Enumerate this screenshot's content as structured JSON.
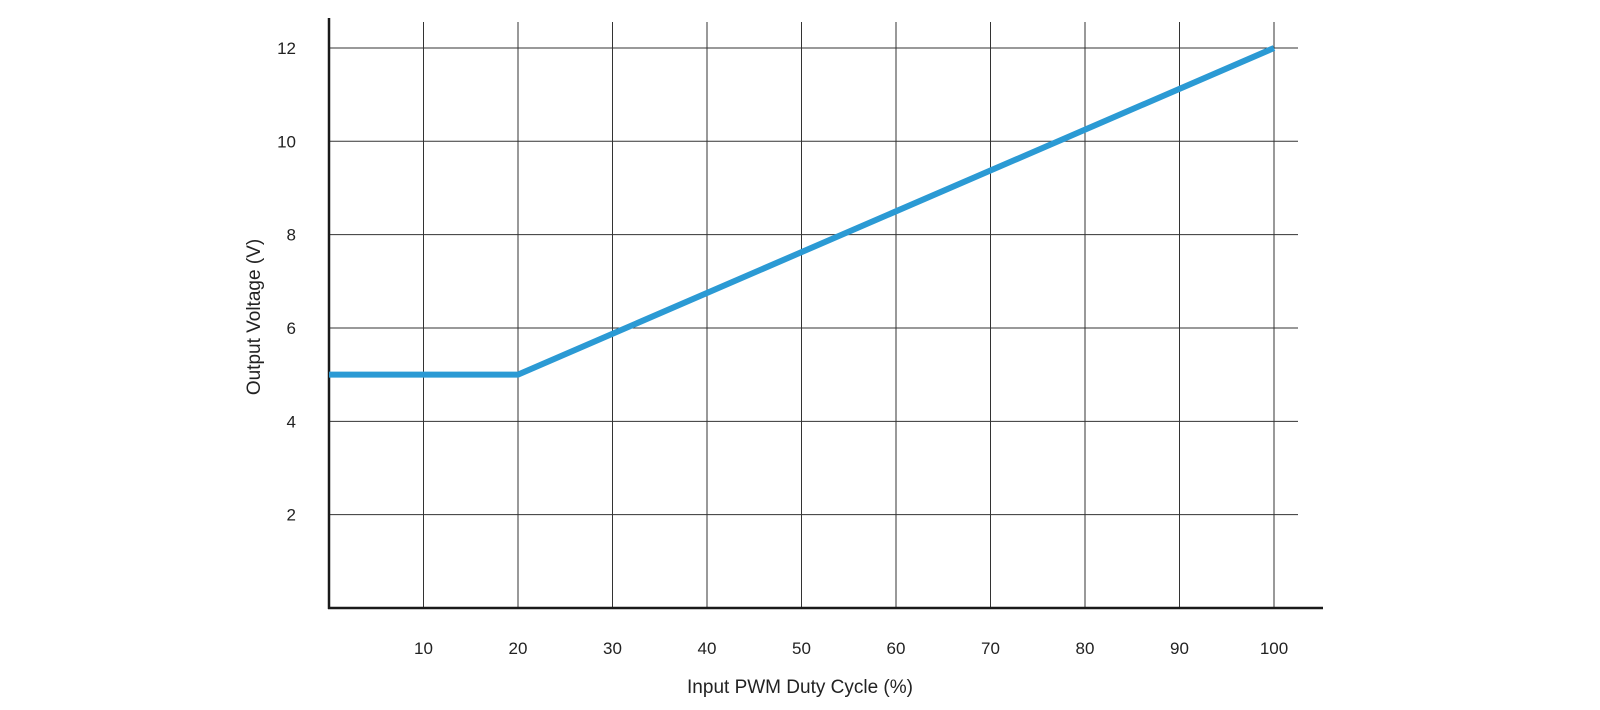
{
  "colors": {
    "line": "#2B9AD4",
    "grid": "#333333",
    "axis": "#1a1a1a",
    "text": "#222222"
  },
  "chart_data": {
    "type": "line",
    "xlabel": "Input PWM Duty Cycle (%)",
    "ylabel": "Output Voltage (V)",
    "xlim": [
      0,
      105
    ],
    "ylim": [
      0,
      12.6
    ],
    "x_ticks": [
      10,
      20,
      30,
      40,
      50,
      60,
      70,
      80,
      90,
      100
    ],
    "y_ticks": [
      2,
      4,
      6,
      8,
      10,
      12
    ],
    "grid": true,
    "series": [
      {
        "x": [
          0,
          20,
          100
        ],
        "y": [
          5,
          5,
          12
        ]
      }
    ]
  }
}
